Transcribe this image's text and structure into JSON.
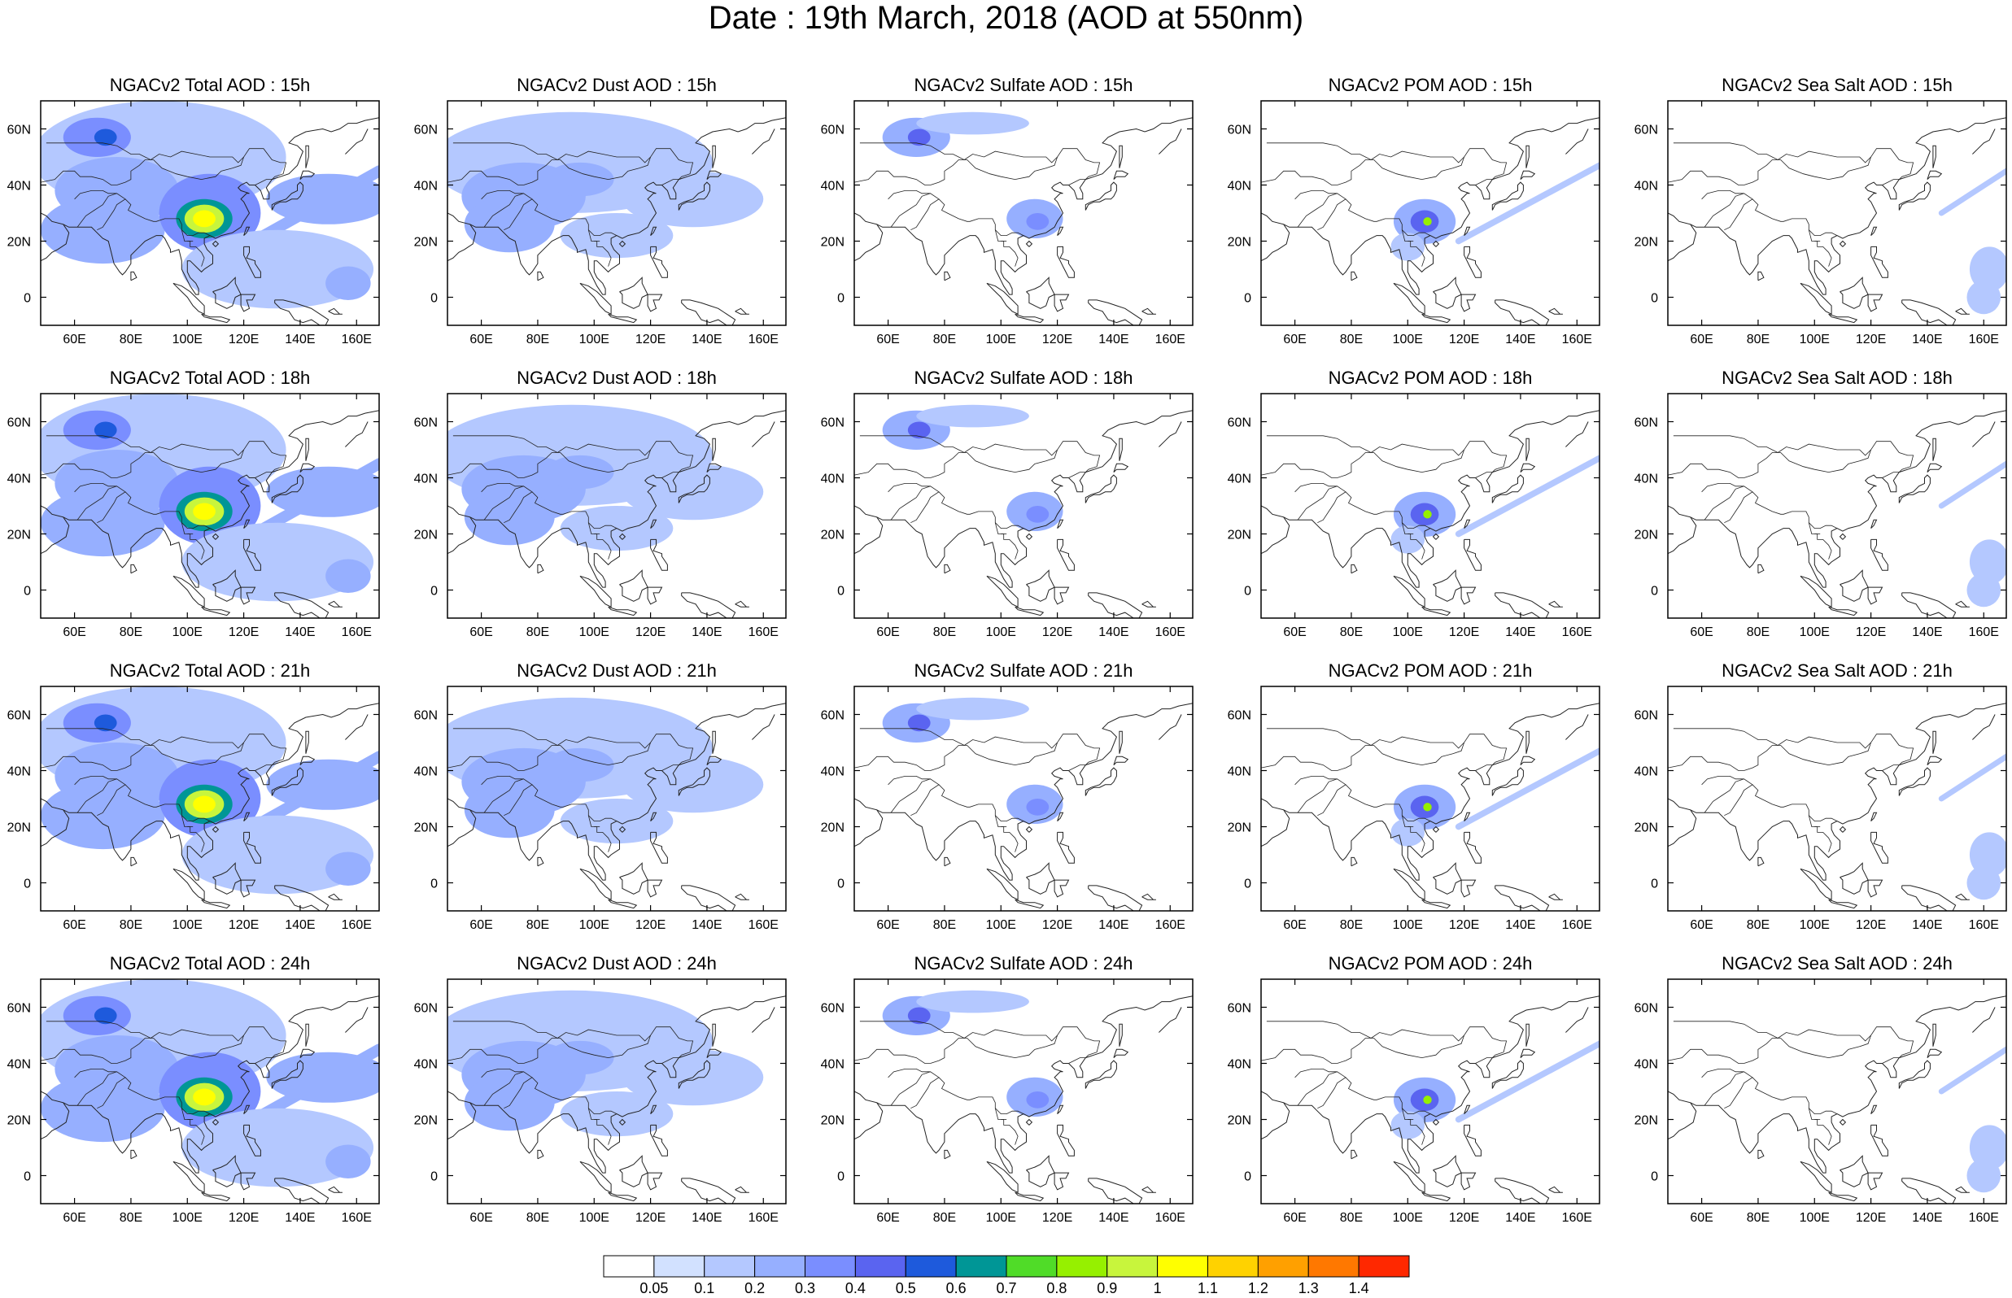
{
  "title": "Date : 19th March, 2018 (AOD at 550nm)",
  "map_extent": {
    "lon": [
      48,
      168
    ],
    "lat": [
      -10,
      70
    ]
  },
  "x_tick_labels": [
    {
      "lon": 60,
      "text": "60E"
    },
    {
      "lon": 80,
      "text": "80E"
    },
    {
      "lon": 100,
      "text": "100E"
    },
    {
      "lon": 120,
      "text": "120E"
    },
    {
      "lon": 140,
      "text": "140E"
    },
    {
      "lon": 160,
      "text": "160E"
    }
  ],
  "y_tick_labels": [
    {
      "lat": 60,
      "text": "60N"
    },
    {
      "lat": 40,
      "text": "40N"
    },
    {
      "lat": 20,
      "text": "20N"
    },
    {
      "lat": 0,
      "text": "0"
    }
  ],
  "panels": [
    {
      "title": "NGACv2 Total AOD : 15h",
      "species": "total",
      "hour": 15
    },
    {
      "title": "NGACv2 Dust AOD : 15h",
      "species": "dust",
      "hour": 15
    },
    {
      "title": "NGACv2 Sulfate AOD : 15h",
      "species": "sulfate",
      "hour": 15
    },
    {
      "title": "NGACv2 POM AOD : 15h",
      "species": "pom",
      "hour": 15
    },
    {
      "title": "NGACv2 Sea Salt AOD : 15h",
      "species": "seasalt",
      "hour": 15
    },
    {
      "title": "NGACv2 Total AOD : 18h",
      "species": "total",
      "hour": 18
    },
    {
      "title": "NGACv2 Dust AOD : 18h",
      "species": "dust",
      "hour": 18
    },
    {
      "title": "NGACv2 Sulfate AOD : 18h",
      "species": "sulfate",
      "hour": 18
    },
    {
      "title": "NGACv2 POM AOD : 18h",
      "species": "pom",
      "hour": 18
    },
    {
      "title": "NGACv2 Sea Salt AOD : 18h",
      "species": "seasalt",
      "hour": 18
    },
    {
      "title": "NGACv2 Total AOD : 21h",
      "species": "total",
      "hour": 21
    },
    {
      "title": "NGACv2 Dust AOD : 21h",
      "species": "dust",
      "hour": 21
    },
    {
      "title": "NGACv2 Sulfate AOD : 21h",
      "species": "sulfate",
      "hour": 21
    },
    {
      "title": "NGACv2 POM AOD : 21h",
      "species": "pom",
      "hour": 21
    },
    {
      "title": "NGACv2 Sea Salt AOD : 21h",
      "species": "seasalt",
      "hour": 21
    },
    {
      "title": "NGACv2 Total AOD : 24h",
      "species": "total",
      "hour": 24
    },
    {
      "title": "NGACv2 Dust AOD : 24h",
      "species": "dust",
      "hour": 24
    },
    {
      "title": "NGACv2 Sulfate AOD : 24h",
      "species": "sulfate",
      "hour": 24
    },
    {
      "title": "NGACv2 POM AOD : 24h",
      "species": "pom",
      "hour": 24
    },
    {
      "title": "NGACv2 Sea Salt  AOD : 24h",
      "species": "seasalt",
      "hour": 24
    }
  ],
  "aod_fields": {
    "total": [
      {
        "lon": 90,
        "lat": 50,
        "rx": 45,
        "ry": 20,
        "aod": 0.1
      },
      {
        "lon": 75,
        "lat": 38,
        "rx": 22,
        "ry": 12,
        "aod": 0.2
      },
      {
        "lon": 68,
        "lat": 57,
        "rx": 12,
        "ry": 7,
        "aod": 0.3
      },
      {
        "lon": 71,
        "lat": 57,
        "rx": 4,
        "ry": 3,
        "aod": 0.5
      },
      {
        "lon": 70,
        "lat": 24,
        "rx": 22,
        "ry": 12,
        "aod": 0.2
      },
      {
        "lon": 108,
        "lat": 30,
        "rx": 18,
        "ry": 14,
        "aod": 0.3
      },
      {
        "lon": 106,
        "lat": 28,
        "rx": 10,
        "ry": 7,
        "aod": 0.6
      },
      {
        "lon": 106,
        "lat": 28,
        "rx": 7,
        "ry": 5,
        "aod": 0.9
      },
      {
        "lon": 106,
        "lat": 28,
        "rx": 4,
        "ry": 3,
        "aod": 1.0
      },
      {
        "lon": 150,
        "lat": 35,
        "rx": 22,
        "ry": 9,
        "aod": 0.2
      },
      {
        "lon": 132,
        "lat": 10,
        "rx": 34,
        "ry": 14,
        "aod": 0.1
      },
      {
        "lon": 157,
        "lat": 5,
        "rx": 8,
        "ry": 6,
        "aod": 0.2
      }
    ],
    "dust": [
      {
        "lon": 92,
        "lat": 48,
        "rx": 50,
        "ry": 18,
        "aod": 0.1
      },
      {
        "lon": 75,
        "lat": 36,
        "rx": 22,
        "ry": 12,
        "aod": 0.2
      },
      {
        "lon": 70,
        "lat": 26,
        "rx": 16,
        "ry": 10,
        "aod": 0.2
      },
      {
        "lon": 95,
        "lat": 42,
        "rx": 12,
        "ry": 6,
        "aod": 0.2
      },
      {
        "lon": 135,
        "lat": 35,
        "rx": 25,
        "ry": 10,
        "aod": 0.1
      },
      {
        "lon": 108,
        "lat": 22,
        "rx": 20,
        "ry": 8,
        "aod": 0.1
      }
    ],
    "sulfate": [
      {
        "lon": 70,
        "lat": 57,
        "rx": 12,
        "ry": 7,
        "aod": 0.2
      },
      {
        "lon": 71,
        "lat": 57,
        "rx": 4,
        "ry": 3,
        "aod": 0.4
      },
      {
        "lon": 90,
        "lat": 62,
        "rx": 20,
        "ry": 4,
        "aod": 0.1
      },
      {
        "lon": 112,
        "lat": 28,
        "rx": 10,
        "ry": 7,
        "aod": 0.2
      },
      {
        "lon": 113,
        "lat": 27,
        "rx": 4,
        "ry": 3,
        "aod": 0.3
      }
    ],
    "pom": [
      {
        "lon": 106,
        "lat": 27,
        "rx": 11,
        "ry": 8,
        "aod": 0.2
      },
      {
        "lon": 106,
        "lat": 27,
        "rx": 5,
        "ry": 4,
        "aod": 0.4
      },
      {
        "lon": 107,
        "lat": 27,
        "rx": 1.5,
        "ry": 1.5,
        "aod": 0.8
      },
      {
        "lon": 100,
        "lat": 18,
        "rx": 6,
        "ry": 5,
        "aod": 0.1
      }
    ],
    "seasalt": [
      {
        "lon": 162,
        "lat": 10,
        "rx": 7,
        "ry": 8,
        "aod": 0.1
      },
      {
        "lon": 160,
        "lat": 0,
        "rx": 6,
        "ry": 6,
        "aod": 0.1
      }
    ]
  },
  "aod_bands": {
    "total": [
      {
        "lon1": 120,
        "lat1": 18,
        "lon2": 168,
        "lat2": 45,
        "width": 4,
        "aod": 0.2
      }
    ],
    "dust": [],
    "sulfate": [],
    "pom": [
      {
        "lon1": 118,
        "lat1": 20,
        "lon2": 168,
        "lat2": 47,
        "width": 2.2,
        "aod": 0.1
      }
    ],
    "seasalt": [
      {
        "lon1": 145,
        "lat1": 30,
        "lon2": 168,
        "lat2": 45,
        "width": 2,
        "aod": 0.1
      }
    ]
  },
  "colorbar": {
    "colors": [
      "#ffffff",
      "#d2e1ff",
      "#b4c8ff",
      "#96afff",
      "#7a8eff",
      "#5a64f0",
      "#1e5adc",
      "#009696",
      "#50dc28",
      "#96f000",
      "#c8f53c",
      "#ffff00",
      "#ffd200",
      "#ffa000",
      "#ff7800",
      "#ff2800"
    ],
    "labels": [
      "0.05",
      "0.1",
      "0.2",
      "0.3",
      "0.4",
      "0.5",
      "0.6",
      "0.7",
      "0.8",
      "0.9",
      "1",
      "1.1",
      "1.2",
      "1.3",
      "1.4"
    ],
    "levels": [
      0.05,
      0.1,
      0.2,
      0.3,
      0.4,
      0.5,
      0.6,
      0.7,
      0.8,
      0.9,
      1,
      1.1,
      1.2,
      1.3,
      1.4
    ]
  }
}
